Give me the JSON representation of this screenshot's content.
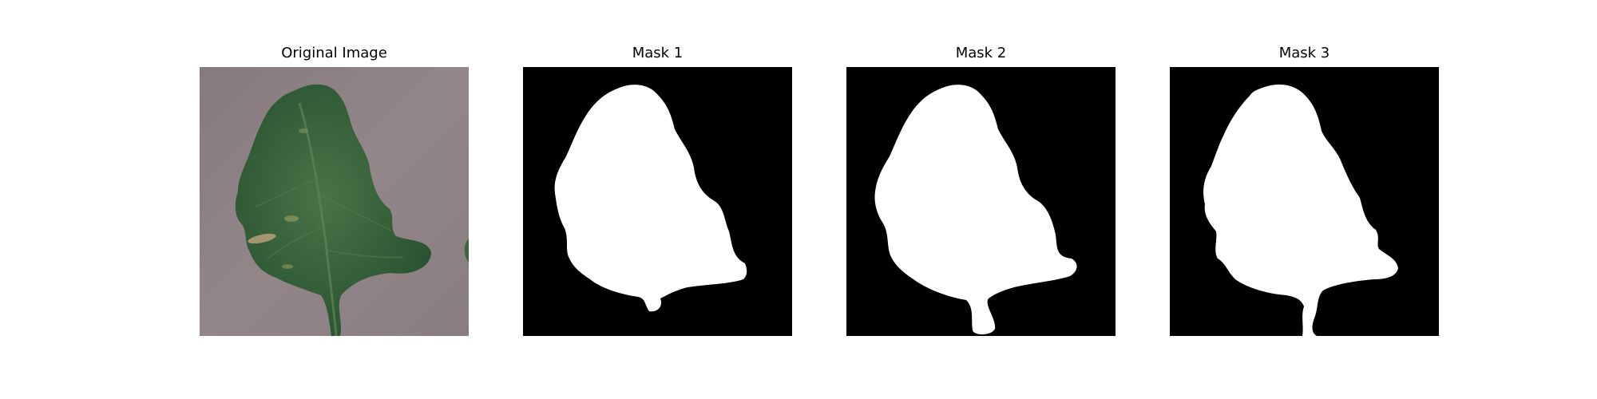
{
  "figure": {
    "panels": [
      {
        "title": "Original Image"
      },
      {
        "title": "Mask 1"
      },
      {
        "title": "Mask 2"
      },
      {
        "title": "Mask 3"
      }
    ],
    "colors": {
      "background_board": "#8a7f82",
      "leaf_dark": "#2f5a34",
      "leaf_mid": "#3d6d40",
      "leaf_light": "#557c4f",
      "mask_foreground": "#ffffff",
      "mask_background": "#000000"
    }
  }
}
